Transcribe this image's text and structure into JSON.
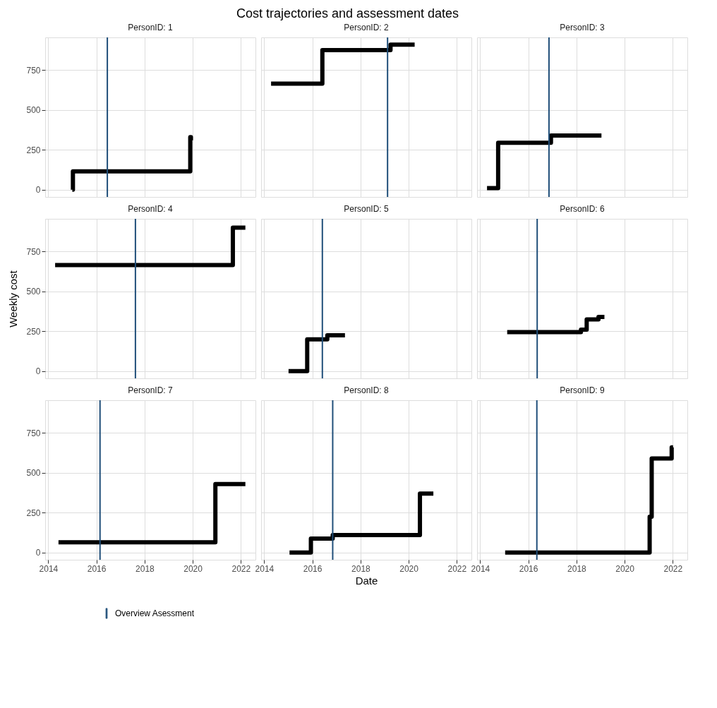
{
  "chart_data": [
    {
      "type": "step",
      "title": "PersonID: 1",
      "annotations": [
        "Cost trajectories and assessment dates"
      ],
      "tick_labels": "y",
      "grid": true,
      "xlim": [
        "2013-11-15",
        "2022-08-10"
      ],
      "ylim": [
        -45,
        955
      ],
      "xticks": [
        "2014",
        "2016",
        "2018",
        "2020",
        "2022"
      ],
      "yticks": [
        0,
        250,
        500,
        750
      ],
      "line_style": "solid",
      "series": [
        {
          "color": "#000000",
          "x": [
            "2015-01-01",
            "2015-01-10",
            "2019-11-25",
            "2019-12-05",
            "2019-12-06"
          ],
          "values": [
            0,
            115,
            330,
            310,
            310
          ]
        }
      ],
      "ref_lines": [
        {
          "axis": "x",
          "value": "2016-06-15",
          "color": "#1f4e79"
        }
      ]
    },
    {
      "type": "step",
      "title": "PersonID: 2",
      "tick_labels": false,
      "grid": true,
      "xlim": [
        "2013-11-15",
        "2022-08-10"
      ],
      "ylim": [
        -45,
        955
      ],
      "xticks": [
        "2014",
        "2016",
        "2018",
        "2020",
        "2022"
      ],
      "yticks": [
        0,
        250,
        500,
        750
      ],
      "line_style": "solid",
      "series": [
        {
          "color": "#000000",
          "x": [
            "2014-04-15",
            "2016-06-01",
            "2019-04-01",
            "2020-04-01"
          ],
          "values": [
            665,
            875,
            910,
            910
          ]
        }
      ],
      "ref_lines": [
        {
          "axis": "x",
          "value": "2019-02-15",
          "color": "#1f4e79"
        }
      ]
    },
    {
      "type": "step",
      "title": "PersonID: 3",
      "tick_labels": false,
      "grid": true,
      "xlim": [
        "2013-11-15",
        "2022-08-10"
      ],
      "ylim": [
        -45,
        955
      ],
      "xticks": [
        "2014",
        "2016",
        "2018",
        "2020",
        "2022"
      ],
      "yticks": [
        0,
        250,
        500,
        750
      ],
      "line_style": "solid",
      "series": [
        {
          "color": "#000000",
          "x": [
            "2014-04-15",
            "2014-10-01",
            "2016-12-10",
            "2019-01-15"
          ],
          "values": [
            10,
            295,
            340,
            340
          ]
        }
      ],
      "ref_lines": [
        {
          "axis": "x",
          "value": "2016-11-10",
          "color": "#1f4e79"
        }
      ]
    },
    {
      "type": "step",
      "title": "PersonID: 4",
      "ylabel": "Weekly cost",
      "tick_labels": "y",
      "grid": true,
      "xlim": [
        "2013-11-15",
        "2022-08-10"
      ],
      "ylim": [
        -45,
        955
      ],
      "xticks": [
        "2014",
        "2016",
        "2018",
        "2020",
        "2022"
      ],
      "yticks": [
        0,
        250,
        500,
        750
      ],
      "line_style": "solid",
      "series": [
        {
          "color": "#000000",
          "x": [
            "2014-04-15",
            "2021-09-01",
            "2022-03-10"
          ],
          "values": [
            665,
            900,
            900
          ]
        }
      ],
      "ref_lines": [
        {
          "axis": "x",
          "value": "2017-08-15",
          "color": "#1f4e79"
        }
      ]
    },
    {
      "type": "step",
      "title": "PersonID: 5",
      "tick_labels": false,
      "grid": true,
      "xlim": [
        "2013-11-15",
        "2022-08-10"
      ],
      "ylim": [
        -45,
        955
      ],
      "xticks": [
        "2014",
        "2016",
        "2018",
        "2020",
        "2022"
      ],
      "yticks": [
        0,
        250,
        500,
        750
      ],
      "line_style": "solid",
      "series": [
        {
          "color": "#000000",
          "x": [
            "2015-01-05",
            "2015-10-15",
            "2016-08-15",
            "2017-05-10"
          ],
          "values": [
            0,
            200,
            225,
            225
          ]
        }
      ],
      "ref_lines": [
        {
          "axis": "x",
          "value": "2016-06-01",
          "color": "#1f4e79"
        }
      ]
    },
    {
      "type": "step",
      "title": "PersonID: 6",
      "tick_labels": false,
      "grid": true,
      "xlim": [
        "2013-11-15",
        "2022-08-10"
      ],
      "ylim": [
        -45,
        955
      ],
      "xticks": [
        "2014",
        "2016",
        "2018",
        "2020",
        "2022"
      ],
      "yticks": [
        0,
        250,
        500,
        750
      ],
      "line_style": "solid",
      "series": [
        {
          "color": "#000000",
          "x": [
            "2015-02-15",
            "2018-03-10",
            "2018-06-05",
            "2018-12-01",
            "2019-03-01"
          ],
          "values": [
            245,
            260,
            325,
            340,
            340
          ]
        }
      ],
      "ref_lines": [
        {
          "axis": "x",
          "value": "2016-05-15",
          "color": "#1f4e79"
        }
      ]
    },
    {
      "type": "step",
      "title": "PersonID: 7",
      "grid": true,
      "xlim": [
        "2013-11-15",
        "2022-08-10"
      ],
      "ylim": [
        -45,
        955
      ],
      "xticks": [
        "2014",
        "2016",
        "2018",
        "2020",
        "2022"
      ],
      "yticks": [
        0,
        250,
        500,
        750
      ],
      "line_style": "solid",
      "series": [
        {
          "color": "#000000",
          "x": [
            "2014-06-05",
            "2020-12-10",
            "2022-03-10"
          ],
          "values": [
            65,
            430,
            430
          ]
        }
      ],
      "ref_lines": [
        {
          "axis": "x",
          "value": "2016-02-25",
          "color": "#1f4e79"
        }
      ]
    },
    {
      "type": "step",
      "title": "PersonID: 8",
      "xlabel": "Date",
      "tick_labels": "x",
      "legend": "bottom",
      "grid": true,
      "xlim": [
        "2013-11-15",
        "2022-08-10"
      ],
      "ylim": [
        -45,
        955
      ],
      "xticks": [
        "2014",
        "2016",
        "2018",
        "2020",
        "2022"
      ],
      "yticks": [
        0,
        250,
        500,
        750
      ],
      "line_style": "solid",
      "series": [
        {
          "color": "#000000",
          "x": [
            "2015-01-20",
            "2015-12-10",
            "2016-11-05",
            "2020-06-20",
            "2021-01-10"
          ],
          "values": [
            0,
            88,
            110,
            370,
            370
          ]
        }
      ],
      "ref_lines": [
        {
          "axis": "x",
          "value": "2016-11-05",
          "color": "#1f4e79",
          "label": "Overview Asessment"
        }
      ]
    },
    {
      "type": "step",
      "title": "PersonID: 9",
      "tick_labels": "x",
      "grid": true,
      "xlim": [
        "2013-11-15",
        "2022-08-10"
      ],
      "ylim": [
        -45,
        955
      ],
      "xticks": [
        "2014",
        "2016",
        "2018",
        "2020",
        "2022"
      ],
      "yticks": [
        0,
        250,
        500,
        750
      ],
      "line_style": "solid",
      "series": [
        {
          "color": "#000000",
          "x": [
            "2015-01-15",
            "2021-01-15",
            "2021-02-15",
            "2021-12-15",
            "2022-01-05"
          ],
          "values": [
            0,
            225,
            590,
            660,
            660
          ]
        }
      ],
      "ref_lines": [
        {
          "axis": "x",
          "value": "2016-05-10",
          "color": "#1f4e79"
        }
      ]
    }
  ]
}
